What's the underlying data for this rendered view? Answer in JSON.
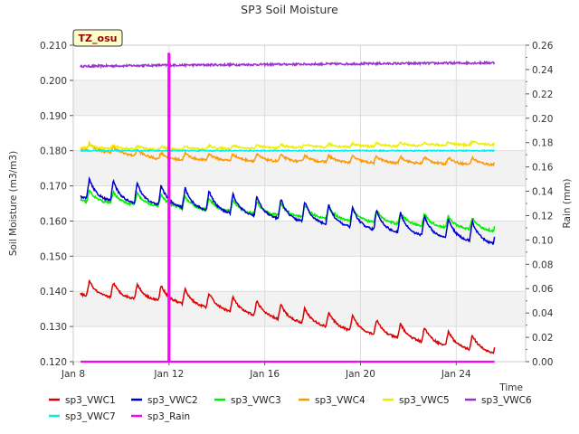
{
  "chart_data": {
    "type": "line",
    "title": "SP3 Soil Moisture",
    "site_label": "TZ_osu",
    "xlabel": "Time",
    "ylabel": "Soil Moisture (m3/m3)",
    "y2label": "Rain (mm)",
    "xlim": [
      0,
      18.9
    ],
    "ylim": [
      0.12,
      0.21
    ],
    "y2lim": [
      0.0,
      0.26
    ],
    "x_ticks": [
      {
        "value": 0,
        "label": "Jan 8"
      },
      {
        "value": 4,
        "label": "Jan 12"
      },
      {
        "value": 8,
        "label": "Jan 16"
      },
      {
        "value": 12,
        "label": "Jan 20"
      },
      {
        "value": 16,
        "label": "Jan 24"
      }
    ],
    "y_ticks": [
      "0.120",
      "0.130",
      "0.140",
      "0.150",
      "0.160",
      "0.170",
      "0.180",
      "0.190",
      "0.200",
      "0.210"
    ],
    "y2_ticks": [
      "0.00",
      "0.02",
      "0.04",
      "0.06",
      "0.08",
      "0.10",
      "0.12",
      "0.14",
      "0.16",
      "0.18",
      "0.20",
      "0.22",
      "0.24",
      "0.26"
    ],
    "grid": true,
    "legend_position": "bottom",
    "series": [
      {
        "name": "sp3_VWC1",
        "color": "#dd0000",
        "axis": "left",
        "x_start": 0.3,
        "x_end": 17.6,
        "y_start": 0.14,
        "y_end": 0.1235,
        "y_mid": 0.1385,
        "amplitude": 0.0045,
        "pattern": "diurnal"
      },
      {
        "name": "sp3_VWC2",
        "color": "#0000cc",
        "axis": "left",
        "x_start": 0.3,
        "x_end": 17.6,
        "y_start": 0.168,
        "y_end": 0.155,
        "y_mid": 0.166,
        "amplitude": 0.006,
        "pattern": "diurnal"
      },
      {
        "name": "sp3_VWC3",
        "color": "#00ee00",
        "axis": "left",
        "x_start": 0.3,
        "x_end": 17.6,
        "y_start": 0.1665,
        "y_end": 0.158,
        "y_mid": 0.165,
        "amplitude": 0.0035,
        "pattern": "diurnal"
      },
      {
        "name": "sp3_VWC4",
        "color": "#ff9900",
        "axis": "left",
        "x_start": 0.3,
        "x_end": 17.6,
        "y_start": 0.181,
        "y_end": 0.1765,
        "y_mid": 0.178,
        "amplitude": 0.002,
        "pattern": "diurnal"
      },
      {
        "name": "sp3_VWC5",
        "color": "#eeee00",
        "axis": "left",
        "x_start": 0.3,
        "x_end": 17.6,
        "y_start": 0.181,
        "y_end": 0.182,
        "y_mid": 0.1805,
        "amplitude": 0.001,
        "pattern": "diurnal"
      },
      {
        "name": "sp3_VWC6",
        "color": "#9933cc",
        "axis": "left",
        "x_start": 0.3,
        "x_end": 17.6,
        "y_start": 0.204,
        "y_end": 0.205,
        "y_mid": 0.2043,
        "amplitude": 0.0002,
        "pattern": "flat"
      },
      {
        "name": "sp3_VWC7",
        "color": "#00eeee",
        "axis": "left",
        "x_start": 0.3,
        "x_end": 17.6,
        "y_start": 0.18,
        "y_end": 0.18,
        "y_mid": 0.18,
        "amplitude": 0.0,
        "pattern": "flat"
      },
      {
        "name": "sp3_Rain",
        "color": "#ff00ff",
        "axis": "right",
        "x_start": 0.3,
        "x_end": 17.6,
        "baseline": 0.0,
        "spike_x": 4.0,
        "spike_value": 0.253,
        "pattern": "spike"
      }
    ]
  }
}
